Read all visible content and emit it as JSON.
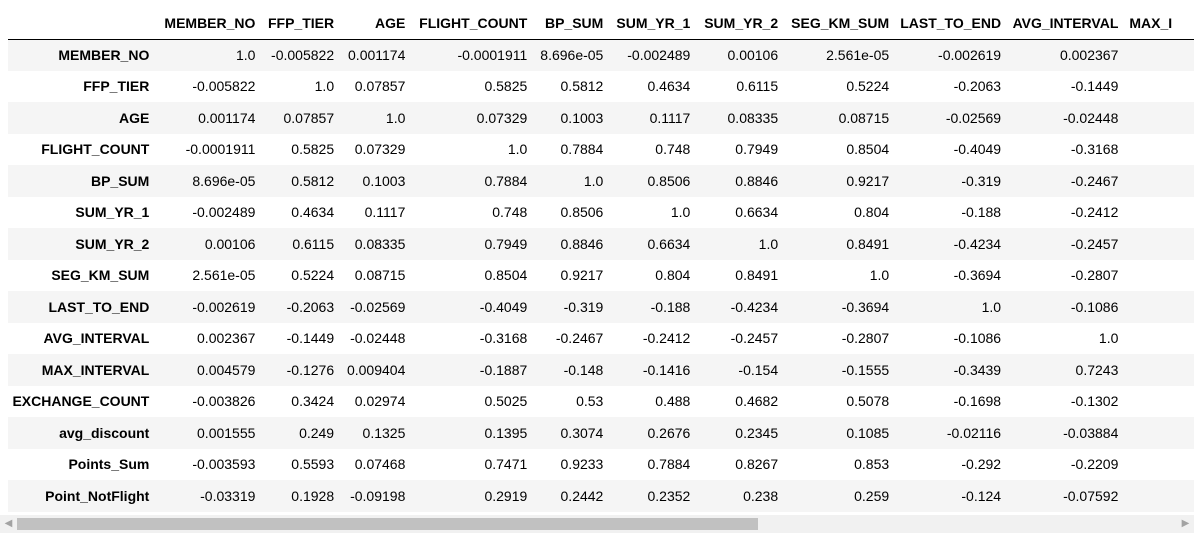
{
  "table": {
    "columns": [
      "MEMBER_NO",
      "FFP_TIER",
      "AGE",
      "FLIGHT_COUNT",
      "BP_SUM",
      "SUM_YR_1",
      "SUM_YR_2",
      "SEG_KM_SUM",
      "LAST_TO_END",
      "AVG_INTERVAL",
      "MAX_I"
    ],
    "rows": [
      {
        "label": "MEMBER_NO",
        "values": [
          "1.0",
          "-0.005822",
          "0.001174",
          "-0.0001911",
          "8.696e-05",
          "-0.002489",
          "0.00106",
          "2.561e-05",
          "-0.002619",
          "0.002367",
          ""
        ]
      },
      {
        "label": "FFP_TIER",
        "values": [
          "-0.005822",
          "1.0",
          "0.07857",
          "0.5825",
          "0.5812",
          "0.4634",
          "0.6115",
          "0.5224",
          "-0.2063",
          "-0.1449",
          ""
        ]
      },
      {
        "label": "AGE",
        "values": [
          "0.001174",
          "0.07857",
          "1.0",
          "0.07329",
          "0.1003",
          "0.1117",
          "0.08335",
          "0.08715",
          "-0.02569",
          "-0.02448",
          ""
        ]
      },
      {
        "label": "FLIGHT_COUNT",
        "values": [
          "-0.0001911",
          "0.5825",
          "0.07329",
          "1.0",
          "0.7884",
          "0.748",
          "0.7949",
          "0.8504",
          "-0.4049",
          "-0.3168",
          ""
        ]
      },
      {
        "label": "BP_SUM",
        "values": [
          "8.696e-05",
          "0.5812",
          "0.1003",
          "0.7884",
          "1.0",
          "0.8506",
          "0.8846",
          "0.9217",
          "-0.319",
          "-0.2467",
          ""
        ]
      },
      {
        "label": "SUM_YR_1",
        "values": [
          "-0.002489",
          "0.4634",
          "0.1117",
          "0.748",
          "0.8506",
          "1.0",
          "0.6634",
          "0.804",
          "-0.188",
          "-0.2412",
          ""
        ]
      },
      {
        "label": "SUM_YR_2",
        "values": [
          "0.00106",
          "0.6115",
          "0.08335",
          "0.7949",
          "0.8846",
          "0.6634",
          "1.0",
          "0.8491",
          "-0.4234",
          "-0.2457",
          ""
        ]
      },
      {
        "label": "SEG_KM_SUM",
        "values": [
          "2.561e-05",
          "0.5224",
          "0.08715",
          "0.8504",
          "0.9217",
          "0.804",
          "0.8491",
          "1.0",
          "-0.3694",
          "-0.2807",
          ""
        ]
      },
      {
        "label": "LAST_TO_END",
        "values": [
          "-0.002619",
          "-0.2063",
          "-0.02569",
          "-0.4049",
          "-0.319",
          "-0.188",
          "-0.4234",
          "-0.3694",
          "1.0",
          "-0.1086",
          ""
        ]
      },
      {
        "label": "AVG_INTERVAL",
        "values": [
          "0.002367",
          "-0.1449",
          "-0.02448",
          "-0.3168",
          "-0.2467",
          "-0.2412",
          "-0.2457",
          "-0.2807",
          "-0.1086",
          "1.0",
          ""
        ]
      },
      {
        "label": "MAX_INTERVAL",
        "values": [
          "0.004579",
          "-0.1276",
          "0.009404",
          "-0.1887",
          "-0.148",
          "-0.1416",
          "-0.154",
          "-0.1555",
          "-0.3439",
          "0.7243",
          ""
        ]
      },
      {
        "label": "EXCHANGE_COUNT",
        "values": [
          "-0.003826",
          "0.3424",
          "0.02974",
          "0.5025",
          "0.53",
          "0.488",
          "0.4682",
          "0.5078",
          "-0.1698",
          "-0.1302",
          ""
        ]
      },
      {
        "label": "avg_discount",
        "values": [
          "0.001555",
          "0.249",
          "0.1325",
          "0.1395",
          "0.3074",
          "0.2676",
          "0.2345",
          "0.1085",
          "-0.02116",
          "-0.03884",
          ""
        ]
      },
      {
        "label": "Points_Sum",
        "values": [
          "-0.003593",
          "0.5593",
          "0.07468",
          "0.7471",
          "0.9233",
          "0.7884",
          "0.8267",
          "0.853",
          "-0.292",
          "-0.2209",
          ""
        ]
      },
      {
        "label": "Point_NotFlight",
        "values": [
          "-0.03319",
          "0.1928",
          "-0.09198",
          "0.2919",
          "0.2442",
          "0.2352",
          "0.238",
          "0.259",
          "-0.124",
          "-0.07592",
          ""
        ]
      }
    ]
  },
  "scrollbar": {
    "left_arrow": "◀",
    "right_arrow": "▶"
  }
}
